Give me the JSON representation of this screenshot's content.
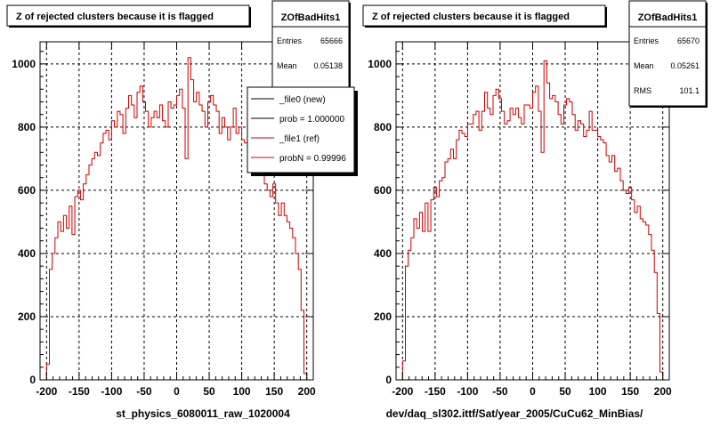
{
  "chart_data": [
    {
      "type": "line",
      "title": "Z of rejected clusters  because it is flagged",
      "xlabel": "st_physics_6080011_raw_1020004",
      "ylabel": "",
      "xlim": [
        -210,
        210
      ],
      "ylim": [
        0,
        1070
      ],
      "x_ticks": [
        "-200",
        "-150",
        "-100",
        "-50",
        "0",
        "50",
        "100",
        "150",
        "200"
      ],
      "y_ticks": [
        "0",
        "200",
        "400",
        "600",
        "800",
        "1000"
      ],
      "grid": true,
      "stats": {
        "name": "ZOfBadHits1",
        "rows": [
          {
            "label": "Entries",
            "value": "65666"
          },
          {
            "label": "Mean",
            "value": "0.05138"
          }
        ]
      },
      "legend": {
        "position": "top-right",
        "entries": [
          "_file0 (new)",
          "prob = 1.000000",
          "_file1 (ref)",
          "probN = 0.99996"
        ]
      },
      "series": [
        {
          "name": "_file1 (ref)",
          "color": "#cc0000",
          "bin_edges": [
            -200,
            200
          ],
          "values": [
            50,
            350,
            400,
            450,
            500,
            470,
            520,
            480,
            550,
            460,
            580,
            600,
            570,
            620,
            650,
            680,
            700,
            720,
            710,
            750,
            780,
            790,
            760,
            820,
            800,
            850,
            840,
            780,
            860,
            900,
            870,
            830,
            910,
            930,
            880,
            850,
            800,
            830,
            850,
            830,
            870,
            820,
            800,
            880,
            860,
            870,
            900,
            920,
            860,
            700,
            1020,
            950,
            880,
            910,
            870,
            850,
            800,
            880,
            900,
            870,
            850,
            780,
            830,
            800,
            760,
            800,
            860,
            780,
            800,
            760,
            750,
            760,
            700,
            680,
            720,
            650,
            680,
            620,
            600,
            580,
            620,
            560,
            520,
            560,
            520,
            500,
            480,
            450,
            400,
            350,
            220,
            20
          ]
        }
      ]
    },
    {
      "type": "line",
      "title": "Z of rejected clusters  because it is flagged",
      "xlabel": "dev/daq_sl302.ittf/Sat/year_2005/CuCu62_MinBias/",
      "ylabel": "",
      "xlim": [
        -210,
        210
      ],
      "ylim": [
        0,
        1070
      ],
      "x_ticks": [
        "-200",
        "-150",
        "-100",
        "-50",
        "0",
        "50",
        "100",
        "150",
        "200"
      ],
      "y_ticks": [
        "0",
        "200",
        "400",
        "600",
        "800",
        "1000"
      ],
      "grid": true,
      "stats": {
        "name": "ZOfBadHits1",
        "rows": [
          {
            "label": "Entries",
            "value": "65670"
          },
          {
            "label": "Mean",
            "value": "0.05261"
          },
          {
            "label": "RMS",
            "value": "101.1"
          }
        ]
      },
      "legend": null,
      "series": [
        {
          "name": "",
          "color": "#cc0000",
          "bin_edges": [
            -200,
            200
          ],
          "values": [
            60,
            360,
            410,
            450,
            510,
            480,
            530,
            470,
            560,
            470,
            570,
            610,
            580,
            630,
            640,
            690,
            700,
            730,
            700,
            760,
            790,
            780,
            770,
            810,
            810,
            840,
            850,
            790,
            850,
            910,
            860,
            840,
            900,
            920,
            890,
            850,
            810,
            820,
            860,
            840,
            860,
            830,
            810,
            870,
            870,
            860,
            910,
            930,
            850,
            720,
            1010,
            940,
            890,
            900,
            880,
            840,
            810,
            870,
            890,
            880,
            840,
            790,
            820,
            810,
            770,
            790,
            850,
            790,
            790,
            770,
            760,
            750,
            710,
            690,
            710,
            660,
            670,
            630,
            600,
            590,
            610,
            570,
            530,
            550,
            510,
            500,
            490,
            460,
            410,
            340,
            210,
            25
          ]
        }
      ]
    }
  ]
}
